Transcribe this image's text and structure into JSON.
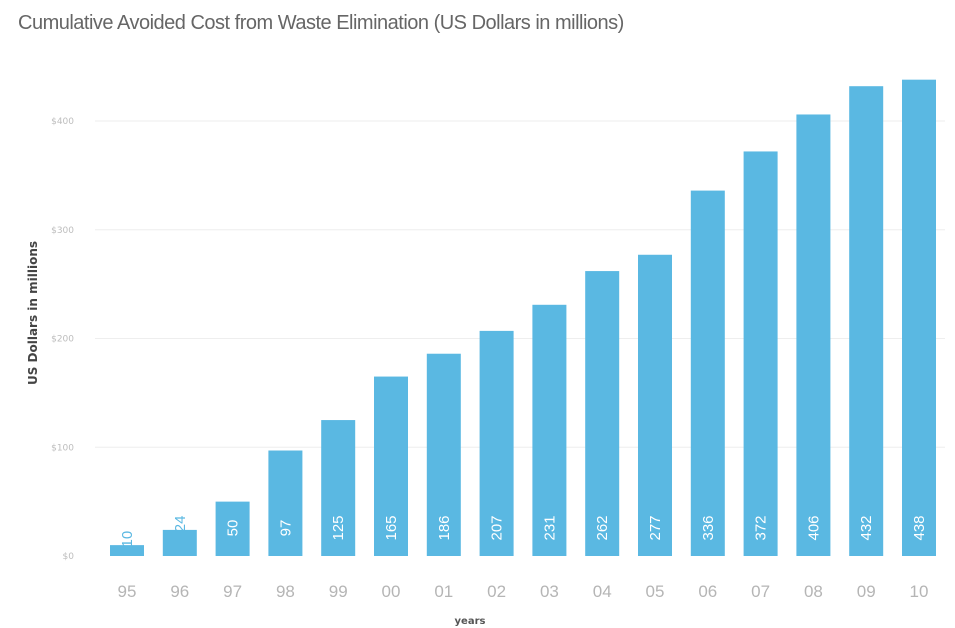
{
  "chart_data": {
    "type": "bar",
    "title": "Cumulative Avoided Cost from Waste Elimination (US Dollars in millions)",
    "xlabel": "years",
    "ylabel": "US Dollars in millions",
    "categories": [
      "95",
      "96",
      "97",
      "98",
      "99",
      "00",
      "01",
      "02",
      "03",
      "04",
      "05",
      "06",
      "07",
      "08",
      "09",
      "10"
    ],
    "values": [
      10,
      24,
      50,
      97,
      125,
      165,
      186,
      207,
      231,
      262,
      277,
      336,
      372,
      406,
      432,
      438
    ],
    "data_labels": [
      "10",
      "24",
      "50",
      "97",
      "125",
      "165",
      "186",
      "207",
      "231",
      "262",
      "277",
      "336",
      "372",
      "406",
      "432",
      "438"
    ],
    "yticks": [
      0,
      100,
      200,
      300,
      400
    ],
    "ytick_labels": [
      "$0",
      "$100",
      "$200",
      "$300",
      "$400"
    ],
    "ylim": [
      0,
      450
    ],
    "grid": true,
    "bar_color": "#5ab8e2"
  }
}
